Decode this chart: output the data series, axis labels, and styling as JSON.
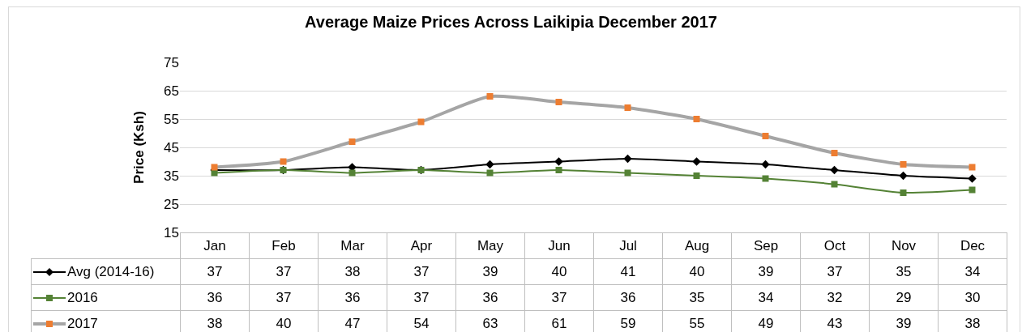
{
  "chart_data": {
    "type": "line",
    "title": "Average Maize Prices Across Laikipia December 2017",
    "ylabel": "Price (Ksh)",
    "categories": [
      "Jan",
      "Feb",
      "Mar",
      "Apr",
      "May",
      "Jun",
      "Jul",
      "Aug",
      "Sep",
      "Oct",
      "Nov",
      "Dec"
    ],
    "series": [
      {
        "name": "Avg (2014-16)",
        "color": "#000000",
        "marker": "diamond",
        "values": [
          37,
          37,
          38,
          37,
          39,
          40,
          41,
          40,
          39,
          37,
          35,
          34
        ]
      },
      {
        "name": "2016",
        "color": "#548235",
        "marker": "square",
        "values": [
          36,
          37,
          36,
          37,
          36,
          37,
          36,
          35,
          34,
          32,
          29,
          30
        ]
      },
      {
        "name": "2017",
        "color": "#a5a5a5",
        "marker": "square",
        "values": [
          38,
          40,
          47,
          54,
          63,
          61,
          59,
          55,
          49,
          43,
          39,
          38
        ]
      }
    ],
    "ylim": [
      15,
      75
    ],
    "yticks": [
      15,
      25,
      35,
      45,
      55,
      65,
      75
    ],
    "grid": "y",
    "legend": "bottom",
    "data_labels": true,
    "line_style": "solid"
  }
}
